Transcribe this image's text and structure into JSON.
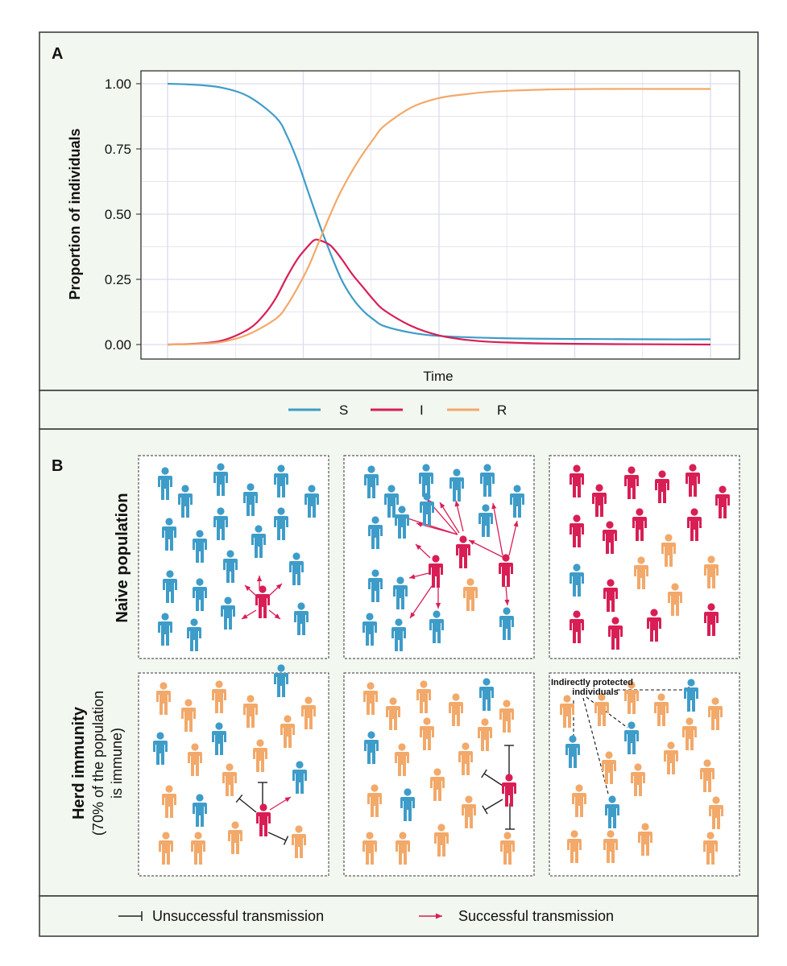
{
  "colors": {
    "susceptible": "#3e9cc9",
    "infected": "#d81e55",
    "recovered": "#f2a96a",
    "panel_bg": "#f2f7ef",
    "border": "#333333",
    "grid": "#dcdcee"
  },
  "panel_a": {
    "label": "A",
    "legend": [
      {
        "key": "S",
        "color": "#3e9cc9"
      },
      {
        "key": "I",
        "color": "#d81e55"
      },
      {
        "key": "R",
        "color": "#f2a96a"
      }
    ]
  },
  "chart_data": {
    "type": "line",
    "title": "",
    "xlabel": "Time",
    "ylabel": "Proportion of individuals",
    "xlim": [
      0,
      100
    ],
    "ylim": [
      0,
      1
    ],
    "yticks": [
      "0.00",
      "0.25",
      "0.50",
      "0.75",
      "1.00"
    ],
    "grid": true,
    "legend_position": "bottom",
    "series": [
      {
        "name": "S",
        "color": "#3e9cc9",
        "x": [
          0,
          5,
          10,
          15,
          20,
          22,
          24,
          26,
          28,
          30,
          32,
          34,
          36,
          38,
          40,
          45,
          50,
          60,
          70,
          80,
          90,
          100
        ],
        "y": [
          1.0,
          0.996,
          0.985,
          0.95,
          0.87,
          0.8,
          0.7,
          0.58,
          0.46,
          0.35,
          0.25,
          0.18,
          0.13,
          0.095,
          0.07,
          0.045,
          0.033,
          0.025,
          0.022,
          0.021,
          0.02,
          0.02
        ]
      },
      {
        "name": "I",
        "color": "#d81e55",
        "x": [
          0,
          5,
          10,
          15,
          18,
          20,
          22,
          24,
          26,
          27,
          28,
          30,
          32,
          34,
          36,
          38,
          40,
          45,
          50,
          55,
          60,
          70,
          80,
          90,
          100
        ],
        "y": [
          0.0,
          0.003,
          0.015,
          0.06,
          0.12,
          0.18,
          0.26,
          0.33,
          0.38,
          0.4,
          0.4,
          0.38,
          0.33,
          0.27,
          0.22,
          0.17,
          0.13,
          0.07,
          0.035,
          0.018,
          0.01,
          0.004,
          0.002,
          0.001,
          0.0
        ]
      },
      {
        "name": "R",
        "color": "#f2a96a",
        "x": [
          0,
          5,
          10,
          15,
          20,
          22,
          24,
          26,
          28,
          30,
          32,
          35,
          38,
          40,
          45,
          50,
          55,
          60,
          70,
          80,
          90,
          100
        ],
        "y": [
          0.0,
          0.002,
          0.01,
          0.04,
          0.1,
          0.15,
          0.22,
          0.3,
          0.4,
          0.5,
          0.59,
          0.7,
          0.79,
          0.84,
          0.91,
          0.945,
          0.96,
          0.97,
          0.978,
          0.98,
          0.98,
          0.98
        ]
      }
    ]
  },
  "panel_b": {
    "label": "B",
    "row_labels": {
      "naive": "Naive population",
      "herd_line1": "Herd immunity",
      "herd_line2": "(70% of the population",
      "herd_line3": "is immune)"
    },
    "annotation": {
      "line1": "Indirectly protected",
      "line2": "individuals"
    },
    "legend": {
      "unsuccessful": "Unsuccessful transmission",
      "successful": "Successful transmission"
    }
  }
}
